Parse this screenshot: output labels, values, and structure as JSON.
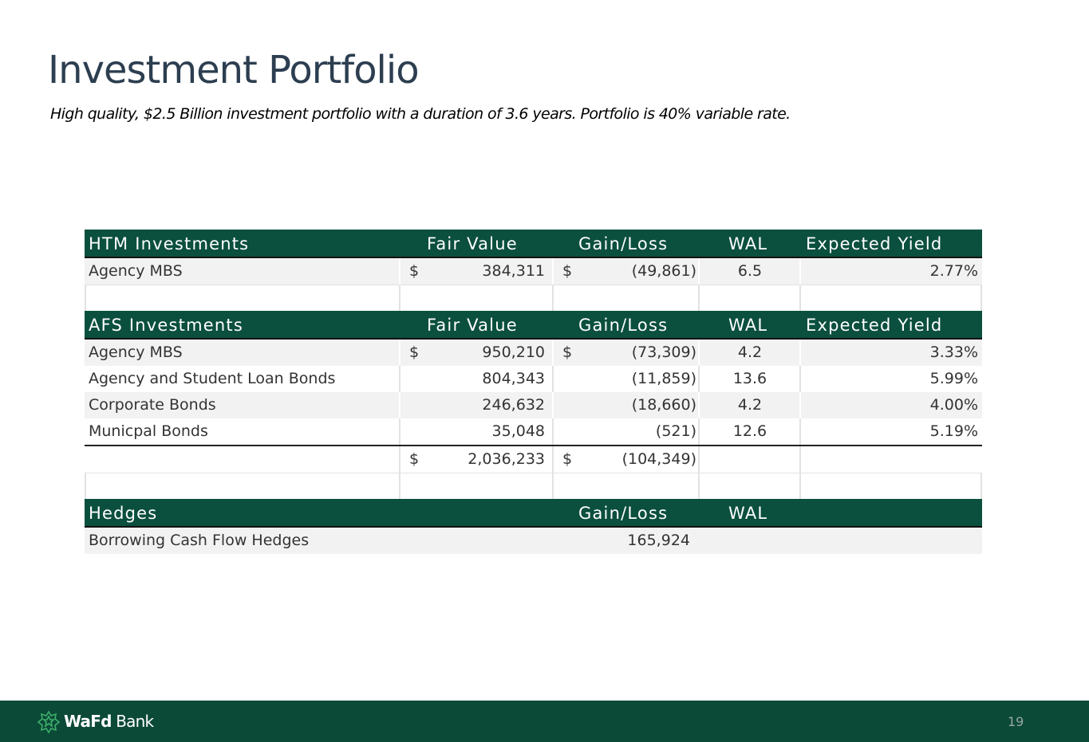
{
  "header": {
    "title": "Investment Portfolio",
    "subtitle": "High quality, $2.5 Billion investment portfolio with a duration of 3.6 years.  Portfolio is 40% variable rate."
  },
  "table": {
    "sections": [
      {
        "header": [
          "HTM Investments",
          "Fair Value",
          "Gain/Loss",
          "WAL",
          "Expected Yield"
        ],
        "rows": [
          [
            "Agency MBS",
            "$",
            "384,311",
            "$",
            "(49,861)",
            "6.5",
            "2.77%"
          ]
        ]
      },
      {
        "header": [
          "AFS Investments",
          "Fair Value",
          "Gain/Loss",
          "WAL",
          "Expected Yield"
        ],
        "rows": [
          [
            "Agency MBS",
            "$",
            "950,210",
            "$",
            "(73,309)",
            "4.2",
            "3.33%"
          ],
          [
            "Agency and Student Loan Bonds",
            null,
            "804,343",
            null,
            "(11,859)",
            "13.6",
            "5.99%"
          ],
          [
            "Corporate Bonds",
            null,
            "246,632",
            null,
            "(18,660)",
            "4.2",
            "4.00%"
          ],
          [
            "Municpal Bonds",
            null,
            "35,048",
            null,
            "(521)",
            "12.6",
            "5.19%"
          ],
          [
            null,
            "$",
            "2,036,233",
            "$",
            "(104,349)",
            null,
            null
          ]
        ]
      },
      {
        "header": [
          "Hedges",
          null,
          "Gain/Loss",
          "WAL",
          null
        ],
        "rows": [
          [
            "Borrowing Cash Flow Hedges",
            null,
            null,
            null,
            "165,924",
            null,
            null
          ]
        ]
      }
    ]
  },
  "footer": {
    "logo_bold": "WaFd",
    "logo_light": "Bank",
    "page_number": "19"
  }
}
